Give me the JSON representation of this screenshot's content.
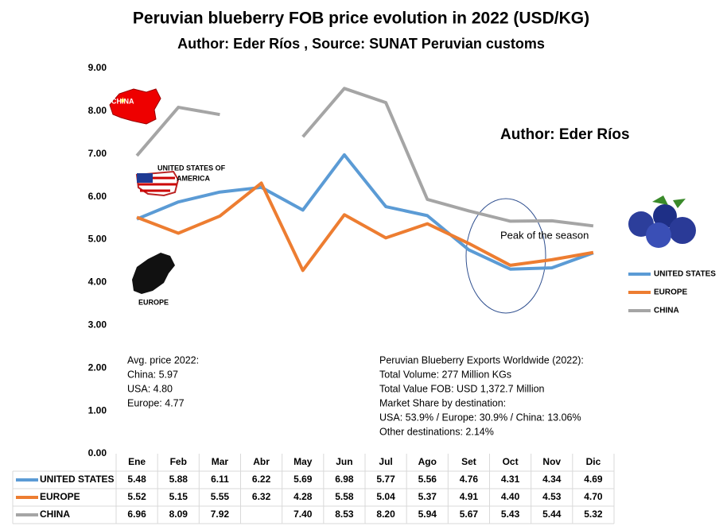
{
  "chart_data": {
    "type": "line",
    "title": "Peruvian blueberry FOB price evolution in 2022 (USD/KG)",
    "subtitle": "Author: Eder Ríos , Source: SUNAT Peruvian customs",
    "categories": [
      "Ene",
      "Feb",
      "Mar",
      "Abr",
      "May",
      "Jun",
      "Jul",
      "Ago",
      "Set",
      "Oct",
      "Nov",
      "Dic"
    ],
    "series": [
      {
        "name": "UNITED STATES",
        "color": "#5b9bd5",
        "values": [
          5.48,
          5.88,
          6.11,
          6.22,
          5.69,
          6.98,
          5.77,
          5.56,
          4.76,
          4.31,
          4.34,
          4.69
        ],
        "value_labels": [
          "5.48",
          "5.88",
          "6.11",
          "6.22",
          "5.69",
          "6.98",
          "5.77",
          "5.56",
          "4.76",
          "4.31",
          "4.34",
          "4.69"
        ]
      },
      {
        "name": "EUROPE",
        "color": "#ed7d31",
        "values": [
          5.52,
          5.15,
          5.55,
          6.32,
          4.28,
          5.58,
          5.04,
          5.37,
          4.91,
          4.4,
          4.53,
          4.7
        ],
        "value_labels": [
          "5.52",
          "5.15",
          "5.55",
          "6.32",
          "4.28",
          "5.58",
          "5.04",
          "5.37",
          "4.91",
          "4.40",
          "4.53",
          "4.70"
        ]
      },
      {
        "name": "CHINA",
        "color": "#a5a5a5",
        "values": [
          6.96,
          8.09,
          7.92,
          null,
          7.4,
          8.53,
          8.2,
          5.94,
          5.67,
          5.43,
          5.44,
          5.32
        ],
        "value_labels": [
          "6.96",
          "8.09",
          "7.92",
          null,
          "7.40",
          "8.53",
          "8.20",
          "5.94",
          "5.67",
          "5.43",
          "5.44",
          "5.32"
        ]
      }
    ],
    "ylim": [
      0,
      9
    ],
    "yticks": [
      {
        "value": 0,
        "label": "0.00"
      },
      {
        "value": 1,
        "label": "1.00"
      },
      {
        "value": 2,
        "label": "2.00"
      },
      {
        "value": 3,
        "label": "3.00"
      },
      {
        "value": 4,
        "label": "4.00"
      },
      {
        "value": 5,
        "label": "5.00"
      },
      {
        "value": 6,
        "label": "6.00"
      },
      {
        "value": 7,
        "label": "7.00"
      },
      {
        "value": 8,
        "label": "8.00"
      },
      {
        "value": 9,
        "label": "9.00"
      }
    ],
    "grid": false,
    "legend": "right",
    "author_note": "Author: Eder Ríos",
    "peak_label": "Peak of the season",
    "map_labels": [
      "CHINA",
      "UNITED STATES OF",
      "AMERICA",
      "EUROPE"
    ],
    "avg_price": [
      "Avg. price 2022:",
      "China: 5.97",
      "USA: 4.80",
      "Europe: 4.77"
    ],
    "exports_note": [
      "Peruvian Blueberry Exports Worldwide (2022):",
      "Total Volume: 277 Million KGs",
      "Total Value FOB: USD 1,372.7 Million",
      "Market Share by destination:",
      "USA: 53.9% / Europe: 30.9% / China: 13.06%",
      "Other destinations: 2.14%"
    ]
  }
}
